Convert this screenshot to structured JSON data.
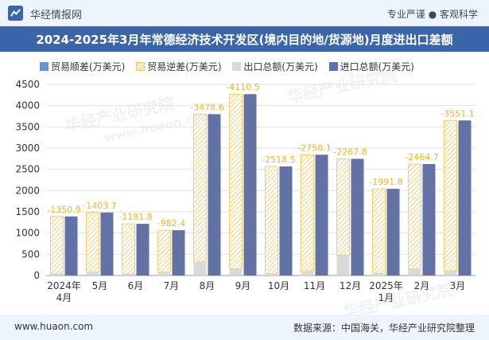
{
  "header": {
    "brand": "华经情报网",
    "tagline": "专业严谨 ● 客观科学",
    "title": "2024-2025年3月年常德经济技术开发区(境内目的地/货源地)月度进出口差额"
  },
  "legend": {
    "surplus": "贸易顺差(万美元)",
    "deficit": "贸易逆差(万美元)",
    "export": "出口总额(万美元)",
    "import": "进口总额(万美元)"
  },
  "watermarks": [
    "华经产业研究院",
    "www.huaon.com",
    "华经产业研究院",
    "华经产业研究院"
  ],
  "footer": {
    "site": "www.huaon.com",
    "source": "数据来源：中国海关，华经产业研究院整理"
  },
  "colors": {
    "surplus": "#6a93cf",
    "deficit": "#f5c451",
    "export": "#d9d9d9",
    "import": "#6272a4",
    "label": "#f0b429"
  },
  "chart_data": {
    "type": "bar",
    "categories": [
      "2024年\n4月",
      "5月",
      "6月",
      "7月",
      "8月",
      "9月",
      "10月",
      "11月",
      "12月",
      "2025年\n1月",
      "2月",
      "3月"
    ],
    "ylim": [
      0,
      4500
    ],
    "yticks": [
      0,
      500,
      1000,
      1500,
      2000,
      2500,
      3000,
      3500,
      4000,
      4500
    ],
    "series": [
      {
        "name": "贸易逆差(万美元)",
        "values": [
          -1350.9,
          -1403.7,
          -1181.8,
          -982.4,
          -3478.6,
          -4110.5,
          -2518.5,
          -2750.1,
          -2267.8,
          -1991.8,
          -2464.7,
          -3551.1
        ]
      },
      {
        "name": "出口总额(万美元)",
        "values": [
          40,
          80,
          35,
          85,
          320,
          160,
          50,
          95,
          480,
          50,
          160,
          100
        ]
      },
      {
        "name": "进口总额(万美元)",
        "values": [
          1390.9,
          1483.7,
          1216.8,
          1067.4,
          3798.6,
          4270.5,
          2568.5,
          2845.1,
          2747.8,
          2041.8,
          2624.7,
          3651.1
        ]
      }
    ],
    "data_labels": [
      "-1350.9",
      "-1403.7",
      "-1181.8",
      "-982.4",
      "-3478.6",
      "-4110.5",
      "-2518.5",
      "-2750.1",
      "-2267.8",
      "-1991.8",
      "-2464.7",
      "-3551.1"
    ]
  }
}
